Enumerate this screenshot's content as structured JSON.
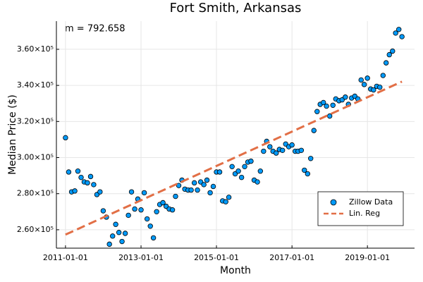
{
  "chart_data": {
    "type": "scatter",
    "title": "Fort Smith, Arkansas",
    "x_label": "Month",
    "y_label": "Median Price ($)",
    "annotation": "m = 792.658",
    "xlim": [
      "2010-10-05",
      "2020-04-01"
    ],
    "xticks": [
      "2011-01-01",
      "2013-01-01",
      "2015-01-01",
      "2017-01-01",
      "2019-01-01"
    ],
    "ylim": [
      249800,
      375600
    ],
    "yticks": [
      {
        "value": 260000,
        "label": "2.60×10⁵"
      },
      {
        "value": 280000,
        "label": "2.80×10⁵"
      },
      {
        "value": 300000,
        "label": "3.00×10⁵"
      },
      {
        "value": 320000,
        "label": "3.20×10⁵"
      },
      {
        "value": 340000,
        "label": "3.40×10⁵"
      },
      {
        "value": 360000,
        "label": "3.60×10⁵"
      }
    ],
    "grid": true,
    "legend": "bottom-right",
    "series": [
      {
        "name": "Zillow Data",
        "type": "scatter",
        "color": "#009af9",
        "x": [
          "2011-01-01",
          "2011-02-01",
          "2011-03-01",
          "2011-04-01",
          "2011-05-01",
          "2011-06-01",
          "2011-07-01",
          "2011-08-01",
          "2011-09-01",
          "2011-10-01",
          "2011-11-01",
          "2011-12-01",
          "2012-01-01",
          "2012-02-01",
          "2012-03-01",
          "2012-04-01",
          "2012-05-01",
          "2012-06-01",
          "2012-07-01",
          "2012-08-01",
          "2012-09-01",
          "2012-10-01",
          "2012-11-01",
          "2012-12-01",
          "2013-01-01",
          "2013-02-01",
          "2013-03-01",
          "2013-04-01",
          "2013-05-01",
          "2013-06-01",
          "2013-07-01",
          "2013-08-01",
          "2013-09-01",
          "2013-10-01",
          "2013-11-01",
          "2013-12-01",
          "2014-01-01",
          "2014-02-01",
          "2014-03-01",
          "2014-04-01",
          "2014-05-01",
          "2014-06-01",
          "2014-07-01",
          "2014-08-01",
          "2014-09-01",
          "2014-10-01",
          "2014-11-01",
          "2014-12-01",
          "2015-01-01",
          "2015-02-01",
          "2015-03-01",
          "2015-04-01",
          "2015-05-01",
          "2015-06-01",
          "2015-07-01",
          "2015-08-01",
          "2015-09-01",
          "2015-10-01",
          "2015-11-01",
          "2015-12-01",
          "2016-01-01",
          "2016-02-01",
          "2016-03-01",
          "2016-04-01",
          "2016-05-01",
          "2016-06-01",
          "2016-07-01",
          "2016-08-01",
          "2016-09-01",
          "2016-10-01",
          "2016-11-01",
          "2016-12-01",
          "2017-01-01",
          "2017-02-01",
          "2017-03-01",
          "2017-04-01",
          "2017-05-01",
          "2017-06-01",
          "2017-07-01",
          "2017-08-01",
          "2017-09-01",
          "2017-10-01",
          "2017-11-01",
          "2017-12-01",
          "2018-01-01",
          "2018-02-01",
          "2018-03-01",
          "2018-04-01",
          "2018-05-01",
          "2018-06-01",
          "2018-07-01",
          "2018-08-01",
          "2018-09-01",
          "2018-10-01",
          "2018-11-01",
          "2018-12-01",
          "2019-01-01",
          "2019-02-01",
          "2019-03-01",
          "2019-04-01",
          "2019-05-01",
          "2019-06-01",
          "2019-07-01",
          "2019-08-01",
          "2019-09-01",
          "2019-10-01",
          "2019-11-01",
          "2019-12-01"
        ],
        "values": [
          311000,
          292000,
          281000,
          281500,
          292500,
          289000,
          286500,
          286000,
          289500,
          285000,
          279500,
          281000,
          270500,
          267000,
          252000,
          256500,
          263000,
          258500,
          253500,
          258000,
          268000,
          281000,
          271500,
          277000,
          271000,
          280500,
          266000,
          262000,
          255500,
          270000,
          274000,
          275000,
          273000,
          271500,
          271000,
          278500,
          284500,
          287500,
          282500,
          282000,
          282000,
          286000,
          282000,
          286500,
          285000,
          287500,
          280500,
          284000,
          292000,
          292000,
          276000,
          275500,
          278000,
          295000,
          291000,
          292500,
          289000,
          295000,
          297500,
          298000,
          287500,
          286500,
          292500,
          303500,
          309000,
          306000,
          303500,
          302500,
          304500,
          304000,
          307500,
          306000,
          307000,
          303500,
          303500,
          304000,
          293000,
          291000,
          299500,
          315000,
          325500,
          329500,
          330500,
          328500,
          323000,
          329000,
          332500,
          331500,
          332000,
          333500,
          329500,
          333000,
          334000,
          332500,
          343000,
          340500,
          344000,
          338000,
          337500,
          339500,
          339000,
          345500,
          352500,
          357000,
          359000,
          369000,
          371000,
          367000
        ]
      },
      {
        "name": "Lin. Reg",
        "type": "line",
        "color": "#e26f46",
        "x": [
          "2011-01-01",
          "2019-12-01"
        ],
        "values": [
          257300,
          342100
        ]
      }
    ]
  }
}
